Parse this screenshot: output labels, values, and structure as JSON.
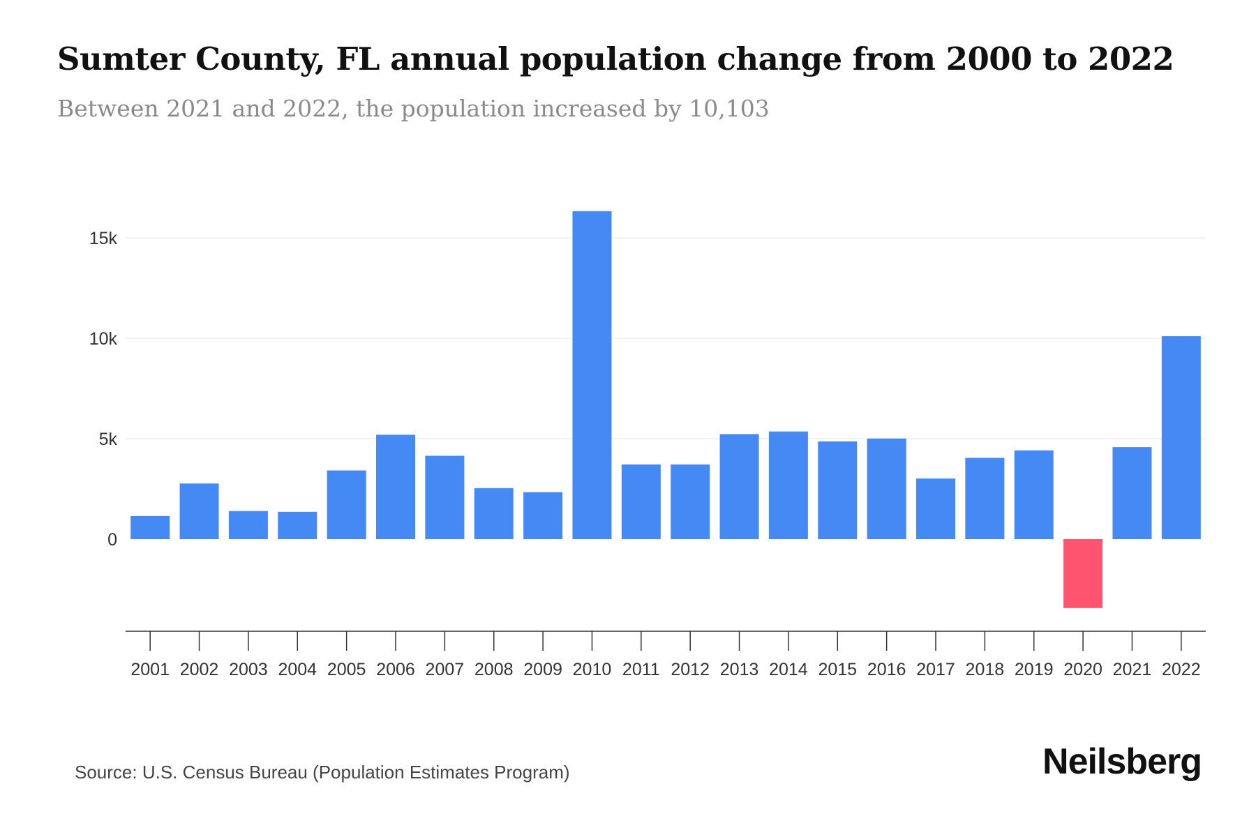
{
  "title": "Sumter County, FL annual population change from 2000 to 2022",
  "subtitle": "Between 2021 and 2022, the population increased by 10,103",
  "source": "Source: U.S. Census Bureau (Population Estimates Program)",
  "brand": "Neilsberg",
  "colors": {
    "positive": "#4589f5",
    "negative": "#ff5470",
    "grid": "#eeeeee",
    "axis": "#333333"
  },
  "chart_data": {
    "type": "bar",
    "title": "Sumter County, FL annual population change from 2000 to 2022",
    "xlabel": "",
    "ylabel": "",
    "categories": [
      "2001",
      "2002",
      "2003",
      "2004",
      "2005",
      "2006",
      "2007",
      "2008",
      "2009",
      "2010",
      "2011",
      "2012",
      "2013",
      "2014",
      "2015",
      "2016",
      "2017",
      "2018",
      "2019",
      "2020",
      "2021",
      "2022"
    ],
    "values": [
      1150,
      2770,
      1400,
      1360,
      3420,
      5200,
      4150,
      2540,
      2340,
      16330,
      3720,
      3720,
      5230,
      5360,
      4870,
      5010,
      3020,
      4050,
      4420,
      -3430,
      4580,
      10103
    ],
    "ylim": [
      -4500,
      17000
    ],
    "yticks": [
      0,
      5000,
      10000,
      15000
    ],
    "ytick_labels": [
      "0",
      "5k",
      "10k",
      "15k"
    ],
    "grid": true
  }
}
